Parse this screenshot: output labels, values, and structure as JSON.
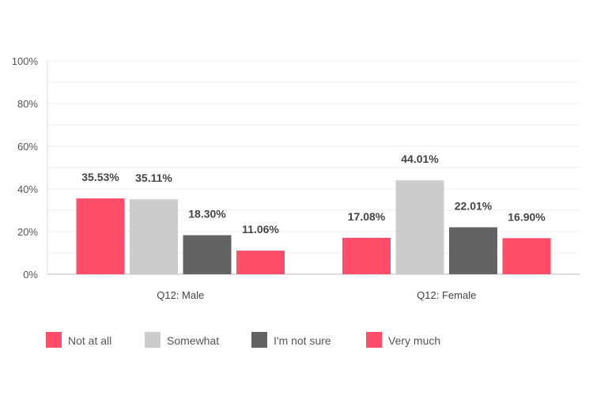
{
  "chart_data": {
    "type": "bar",
    "categories": [
      "Q12: Male",
      "Q12: Female"
    ],
    "series": [
      {
        "name": "Not at all",
        "color": "#FF4D6A",
        "values": [
          35.53,
          17.08
        ],
        "labels": [
          "35.53%",
          "17.08%"
        ]
      },
      {
        "name": "Somewhat",
        "color": "#CCCCCC",
        "values": [
          35.11,
          44.01
        ],
        "labels": [
          "35.11%",
          "44.01%"
        ]
      },
      {
        "name": "I'm not sure",
        "color": "#636363",
        "values": [
          18.3,
          22.01
        ],
        "labels": [
          "18.30%",
          "22.01%"
        ]
      },
      {
        "name": "Very much",
        "color": "#FF4D6A",
        "values": [
          11.06,
          16.9
        ],
        "labels": [
          "11.06%",
          "16.90%"
        ]
      }
    ],
    "yticks": [
      0,
      20,
      40,
      60,
      80,
      100
    ],
    "ytick_labels": [
      "0%",
      "20%",
      "40%",
      "60%",
      "80%",
      "100%"
    ],
    "ylim": [
      0,
      100
    ],
    "grid": true,
    "legend": "bottom-left"
  }
}
